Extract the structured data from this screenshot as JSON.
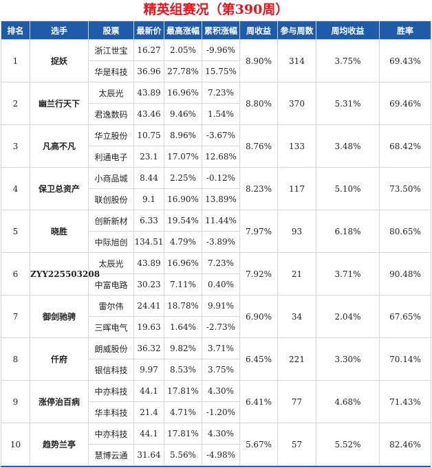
{
  "title": "精英组赛况（第390周）",
  "headers": [
    "排名",
    "选手",
    "股票",
    "最新价",
    "最高涨幅",
    "累积涨幅",
    "周收益",
    "参与周数",
    "周均收益",
    "胜率"
  ],
  "colors": {
    "header_bg": "#1f5ba8",
    "up": "#e0141b",
    "down": "#159020",
    "link": "#1a4ea0"
  },
  "rows": [
    {
      "rank": "1",
      "player": "捉妖",
      "week_return": "8.90%",
      "weeks": "314",
      "avg_return": "3.75%",
      "win_rate": "69.43%",
      "stocks": [
        {
          "name": "浙江世宝",
          "price": "16.27",
          "max_gain": "2.05%",
          "cum_gain": "-9.96%"
        },
        {
          "name": "华是科技",
          "price": "36.96",
          "max_gain": "27.78%",
          "cum_gain": "15.75%"
        }
      ]
    },
    {
      "rank": "2",
      "player": "幽兰行天下",
      "week_return": "8.80%",
      "weeks": "370",
      "avg_return": "5.31%",
      "win_rate": "69.46%",
      "stocks": [
        {
          "name": "太辰光",
          "price": "43.89",
          "max_gain": "16.96%",
          "cum_gain": "7.23%"
        },
        {
          "name": "君逸数码",
          "price": "43.46",
          "max_gain": "9.46%",
          "cum_gain": "1.54%"
        }
      ]
    },
    {
      "rank": "3",
      "player": "凡高不凡",
      "week_return": "8.76%",
      "weeks": "133",
      "avg_return": "3.48%",
      "win_rate": "68.42%",
      "stocks": [
        {
          "name": "华立股份",
          "price": "10.75",
          "max_gain": "8.96%",
          "cum_gain": "-3.67%"
        },
        {
          "name": "利通电子",
          "price": "23.1",
          "max_gain": "17.07%",
          "cum_gain": "12.68%"
        }
      ]
    },
    {
      "rank": "4",
      "player": "保卫总资产",
      "week_return": "8.23%",
      "weeks": "117",
      "avg_return": "5.10%",
      "win_rate": "73.50%",
      "stocks": [
        {
          "name": "小商品城",
          "price": "8.44",
          "max_gain": "2.25%",
          "cum_gain": "-0.12%"
        },
        {
          "name": "联创股份",
          "price": "9.1",
          "max_gain": "16.90%",
          "cum_gain": "13.89%"
        }
      ]
    },
    {
      "rank": "5",
      "player": "晓胜",
      "week_return": "7.97%",
      "weeks": "93",
      "avg_return": "6.18%",
      "win_rate": "80.65%",
      "stocks": [
        {
          "name": "创新新材",
          "price": "6.33",
          "max_gain": "19.54%",
          "cum_gain": "11.44%"
        },
        {
          "name": "中际旭创",
          "price": "134.51",
          "max_gain": "4.79%",
          "cum_gain": "-3.89%"
        }
      ]
    },
    {
      "rank": "6",
      "player": "ZYY225503208",
      "week_return": "7.92%",
      "weeks": "21",
      "avg_return": "3.71%",
      "win_rate": "90.48%",
      "stocks": [
        {
          "name": "太辰光",
          "price": "43.89",
          "max_gain": "16.96%",
          "cum_gain": "7.23%"
        },
        {
          "name": "中富电路",
          "price": "30.23",
          "max_gain": "7.11%",
          "cum_gain": "0.40%"
        }
      ]
    },
    {
      "rank": "7",
      "player": "御剑驰骋",
      "week_return": "6.90%",
      "weeks": "34",
      "avg_return": "2.04%",
      "win_rate": "67.65%",
      "stocks": [
        {
          "name": "雷尔伟",
          "price": "24.41",
          "max_gain": "18.78%",
          "cum_gain": "9.91%"
        },
        {
          "name": "三晖电气",
          "price": "19.63",
          "max_gain": "1.64%",
          "cum_gain": "-2.73%"
        }
      ]
    },
    {
      "rank": "8",
      "player": "仟府",
      "week_return": "6.45%",
      "weeks": "221",
      "avg_return": "3.30%",
      "win_rate": "70.14%",
      "stocks": [
        {
          "name": "朗威股份",
          "price": "36.32",
          "max_gain": "9.82%",
          "cum_gain": "3.71%"
        },
        {
          "name": "银信科技",
          "price": "9.97",
          "max_gain": "8.53%",
          "cum_gain": "3.75%"
        }
      ]
    },
    {
      "rank": "9",
      "player": "涨停治百病",
      "week_return": "6.41%",
      "weeks": "77",
      "avg_return": "4.68%",
      "win_rate": "71.43%",
      "stocks": [
        {
          "name": "中亦科技",
          "price": "44.1",
          "max_gain": "17.81%",
          "cum_gain": "4.30%"
        },
        {
          "name": "华丰科技",
          "price": "21.4",
          "max_gain": "4.71%",
          "cum_gain": "-1.20%"
        }
      ]
    },
    {
      "rank": "10",
      "player": "趋势兰亭",
      "week_return": "5.67%",
      "weeks": "57",
      "avg_return": "5.52%",
      "win_rate": "82.46%",
      "stocks": [
        {
          "name": "中亦科技",
          "price": "44.1",
          "max_gain": "17.81%",
          "cum_gain": "4.30%"
        },
        {
          "name": "慧博云通",
          "price": "31.64",
          "max_gain": "5.56%",
          "cum_gain": "-4.98%"
        }
      ]
    }
  ]
}
